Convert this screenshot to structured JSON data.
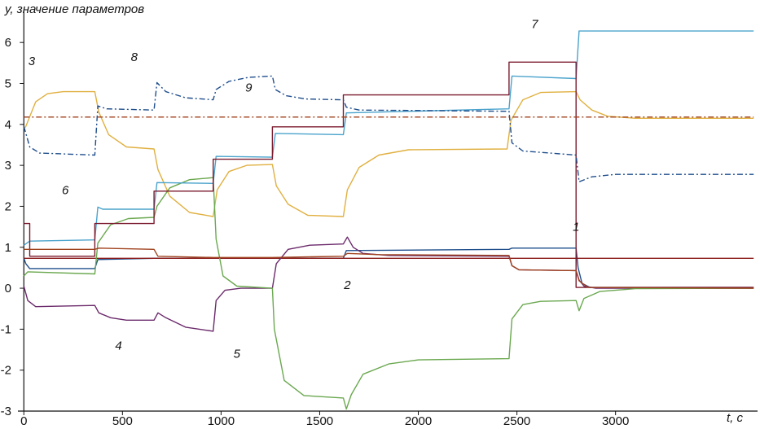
{
  "chart_data": {
    "type": "line",
    "title": "",
    "ylabel": "y, значение параметров",
    "xlabel": "t, с",
    "xlim": [
      -30,
      3720
    ],
    "ylim": [
      -3,
      6.6
    ],
    "x_ticks": [
      0,
      500,
      1000,
      1500,
      2000,
      2500,
      3000
    ],
    "y_ticks": [
      -3,
      -2,
      -1,
      0,
      1,
      2,
      3,
      4,
      5,
      6
    ],
    "grid": false,
    "legend": "none",
    "series": [
      {
        "id": "1",
        "color": "#1f4e8c",
        "style": "solid",
        "points": [
          [
            0,
            0.73
          ],
          [
            10,
            0.6
          ],
          [
            30,
            0.48
          ],
          [
            360,
            0.48
          ],
          [
            375,
            0.7
          ],
          [
            660,
            0.73
          ],
          [
            960,
            0.73
          ],
          [
            1260,
            0.73
          ],
          [
            1620,
            0.73
          ],
          [
            1635,
            0.92
          ],
          [
            2460,
            0.95
          ],
          [
            2475,
            0.98
          ],
          [
            2800,
            0.98
          ],
          [
            2810,
            0.5
          ],
          [
            2830,
            0.12
          ],
          [
            2870,
            0.02
          ],
          [
            3700,
            0.02
          ]
        ]
      },
      {
        "id": "2",
        "color": "#8b1a1a",
        "style": "solid",
        "points": [
          [
            0,
            0.73
          ],
          [
            3700,
            0.73
          ]
        ]
      },
      {
        "id": "3",
        "color": "#e0b040",
        "style": "solid",
        "points": [
          [
            0,
            3.9
          ],
          [
            10,
            3.95
          ],
          [
            60,
            4.55
          ],
          [
            120,
            4.75
          ],
          [
            200,
            4.8
          ],
          [
            360,
            4.8
          ],
          [
            380,
            4.3
          ],
          [
            430,
            3.75
          ],
          [
            520,
            3.45
          ],
          [
            660,
            3.4
          ],
          [
            680,
            2.9
          ],
          [
            740,
            2.25
          ],
          [
            840,
            1.85
          ],
          [
            960,
            1.75
          ],
          [
            980,
            2.4
          ],
          [
            1040,
            2.85
          ],
          [
            1130,
            3.0
          ],
          [
            1260,
            3.02
          ],
          [
            1280,
            2.5
          ],
          [
            1340,
            2.05
          ],
          [
            1440,
            1.78
          ],
          [
            1620,
            1.75
          ],
          [
            1640,
            2.4
          ],
          [
            1700,
            2.95
          ],
          [
            1800,
            3.25
          ],
          [
            1950,
            3.38
          ],
          [
            2450,
            3.4
          ],
          [
            2470,
            4.1
          ],
          [
            2530,
            4.6
          ],
          [
            2620,
            4.78
          ],
          [
            2800,
            4.8
          ],
          [
            2820,
            4.6
          ],
          [
            2880,
            4.35
          ],
          [
            2960,
            4.2
          ],
          [
            3100,
            4.15
          ],
          [
            3700,
            4.15
          ]
        ]
      },
      {
        "id": "4",
        "color": "#6b2a6b",
        "style": "solid",
        "points": [
          [
            0,
            0.05
          ],
          [
            20,
            -0.3
          ],
          [
            60,
            -0.45
          ],
          [
            360,
            -0.42
          ],
          [
            380,
            -0.6
          ],
          [
            440,
            -0.72
          ],
          [
            520,
            -0.78
          ],
          [
            660,
            -0.78
          ],
          [
            680,
            -0.6
          ],
          [
            720,
            -0.72
          ],
          [
            820,
            -0.95
          ],
          [
            960,
            -1.05
          ],
          [
            975,
            -0.3
          ],
          [
            1020,
            -0.05
          ],
          [
            1100,
            0.0
          ],
          [
            1260,
            0.0
          ],
          [
            1280,
            0.6
          ],
          [
            1340,
            0.95
          ],
          [
            1450,
            1.05
          ],
          [
            1620,
            1.08
          ],
          [
            1640,
            1.25
          ],
          [
            1670,
            1.0
          ],
          [
            1720,
            0.85
          ],
          [
            1850,
            0.8
          ],
          [
            2460,
            0.78
          ],
          [
            2475,
            0.55
          ],
          [
            2510,
            0.45
          ],
          [
            2800,
            0.43
          ],
          [
            2815,
            0.2
          ],
          [
            2840,
            0.05
          ],
          [
            2900,
            0.0
          ],
          [
            3700,
            0.0
          ]
        ]
      },
      {
        "id": "5",
        "color": "#6aa84f",
        "style": "solid",
        "points": [
          [
            0,
            0.3
          ],
          [
            20,
            0.4
          ],
          [
            360,
            0.35
          ],
          [
            375,
            1.1
          ],
          [
            440,
            1.55
          ],
          [
            530,
            1.7
          ],
          [
            660,
            1.73
          ],
          [
            675,
            2.0
          ],
          [
            740,
            2.45
          ],
          [
            840,
            2.65
          ],
          [
            960,
            2.7
          ],
          [
            975,
            1.2
          ],
          [
            1010,
            0.3
          ],
          [
            1080,
            0.05
          ],
          [
            1260,
            0.0
          ],
          [
            1270,
            -1.0
          ],
          [
            1320,
            -2.25
          ],
          [
            1420,
            -2.62
          ],
          [
            1620,
            -2.68
          ],
          [
            1635,
            -2.95
          ],
          [
            1660,
            -2.6
          ],
          [
            1720,
            -2.1
          ],
          [
            1850,
            -1.85
          ],
          [
            2000,
            -1.75
          ],
          [
            2460,
            -1.72
          ],
          [
            2475,
            -0.75
          ],
          [
            2530,
            -0.4
          ],
          [
            2620,
            -0.32
          ],
          [
            2800,
            -0.3
          ],
          [
            2815,
            -0.55
          ],
          [
            2840,
            -0.25
          ],
          [
            2920,
            -0.08
          ],
          [
            3100,
            -0.01
          ],
          [
            3700,
            0.0
          ]
        ]
      },
      {
        "id": "6",
        "color": "#4aa3cc",
        "style": "solid",
        "points": [
          [
            0,
            1.05
          ],
          [
            30,
            1.15
          ],
          [
            360,
            1.18
          ],
          [
            375,
            1.98
          ],
          [
            400,
            1.93
          ],
          [
            660,
            1.93
          ],
          [
            675,
            2.58
          ],
          [
            960,
            2.56
          ],
          [
            975,
            3.22
          ],
          [
            1260,
            3.2
          ],
          [
            1275,
            3.78
          ],
          [
            1620,
            3.75
          ],
          [
            1635,
            4.28
          ],
          [
            2460,
            4.38
          ],
          [
            2475,
            5.18
          ],
          [
            2800,
            5.12
          ],
          [
            2815,
            6.28
          ],
          [
            3700,
            6.28
          ]
        ]
      },
      {
        "id": "7",
        "color": "#7b1a2e",
        "style": "solid",
        "points": [
          [
            0,
            1.58
          ],
          [
            30,
            1.58
          ],
          [
            30,
            0.78
          ],
          [
            360,
            0.78
          ],
          [
            360,
            1.58
          ],
          [
            660,
            1.58
          ],
          [
            660,
            2.37
          ],
          [
            960,
            2.37
          ],
          [
            960,
            3.15
          ],
          [
            1260,
            3.15
          ],
          [
            1260,
            3.94
          ],
          [
            1620,
            3.94
          ],
          [
            1620,
            4.72
          ],
          [
            2460,
            4.72
          ],
          [
            2460,
            5.52
          ],
          [
            2800,
            5.52
          ],
          [
            2800,
            0.02
          ],
          [
            3700,
            0.02
          ]
        ]
      },
      {
        "id": "8",
        "color": "#1f4e8c",
        "style": "dashdot",
        "points": [
          [
            0,
            3.95
          ],
          [
            30,
            3.45
          ],
          [
            80,
            3.3
          ],
          [
            360,
            3.25
          ],
          [
            375,
            4.45
          ],
          [
            420,
            4.38
          ],
          [
            660,
            4.35
          ],
          [
            675,
            5.02
          ],
          [
            720,
            4.8
          ],
          [
            820,
            4.65
          ],
          [
            960,
            4.6
          ],
          [
            975,
            4.85
          ],
          [
            1040,
            5.05
          ],
          [
            1140,
            5.15
          ],
          [
            1260,
            5.18
          ],
          [
            1275,
            4.85
          ],
          [
            1330,
            4.7
          ],
          [
            1430,
            4.62
          ],
          [
            1620,
            4.6
          ],
          [
            1635,
            4.42
          ],
          [
            1700,
            4.35
          ],
          [
            2460,
            4.32
          ],
          [
            2475,
            3.55
          ],
          [
            2530,
            3.35
          ],
          [
            2800,
            3.25
          ],
          [
            2815,
            2.6
          ],
          [
            2880,
            2.72
          ],
          [
            3000,
            2.78
          ],
          [
            3700,
            2.78
          ]
        ]
      },
      {
        "id": "9",
        "color": "#a0431f",
        "style": "dashdot",
        "points": [
          [
            0,
            4.18
          ],
          [
            3700,
            4.18
          ]
        ]
      },
      {
        "id": "2b",
        "color": "#a0431f",
        "style": "solid",
        "points": [
          [
            0,
            0.95
          ],
          [
            360,
            0.95
          ],
          [
            380,
            0.98
          ],
          [
            660,
            0.95
          ],
          [
            680,
            0.78
          ],
          [
            960,
            0.75
          ],
          [
            1260,
            0.75
          ],
          [
            1620,
            0.78
          ],
          [
            1640,
            0.85
          ],
          [
            1800,
            0.82
          ],
          [
            2460,
            0.8
          ],
          [
            2475,
            0.55
          ],
          [
            2510,
            0.45
          ],
          [
            2800,
            0.43
          ],
          [
            2815,
            0.18
          ],
          [
            2860,
            0.02
          ],
          [
            3700,
            0.0
          ]
        ]
      }
    ],
    "annotations": [
      {
        "text": "1",
        "x": 2800,
        "y": 1.4
      },
      {
        "text": "2",
        "x": 1640,
        "y": -0.02
      },
      {
        "text": "3",
        "x": 40,
        "y": 5.45
      },
      {
        "text": "4",
        "x": 480,
        "y": -1.5
      },
      {
        "text": "5",
        "x": 1080,
        "y": -1.7
      },
      {
        "text": "6",
        "x": 210,
        "y": 2.3
      },
      {
        "text": "7",
        "x": 2590,
        "y": 6.35
      },
      {
        "text": "8",
        "x": 560,
        "y": 5.55
      },
      {
        "text": "9",
        "x": 1140,
        "y": 4.8
      }
    ]
  }
}
